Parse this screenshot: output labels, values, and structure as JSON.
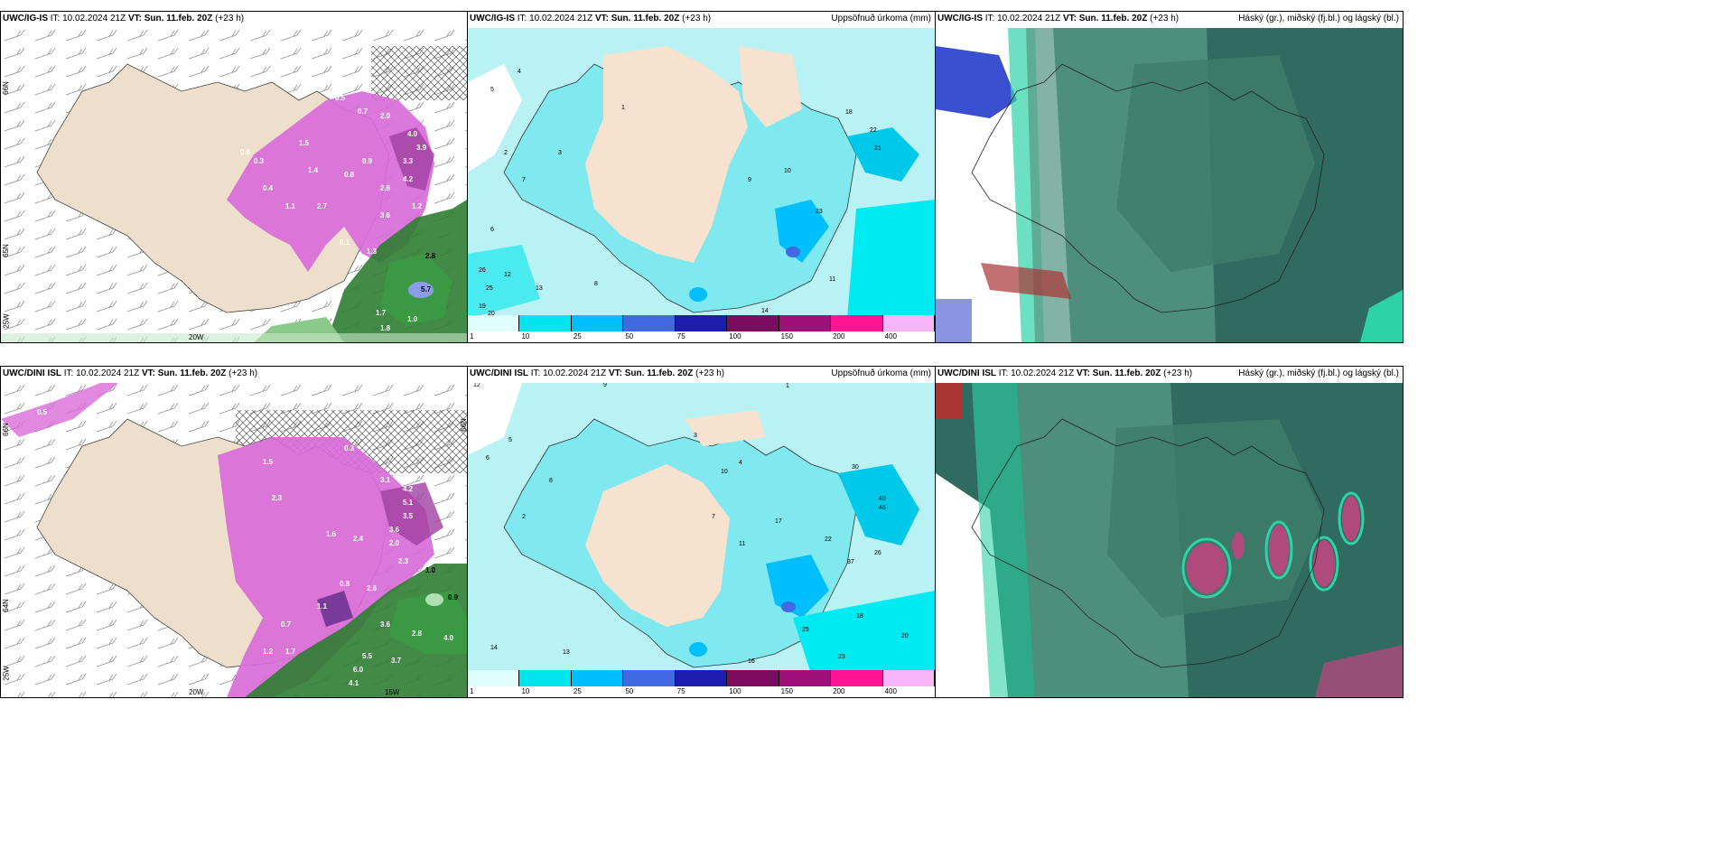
{
  "panels": [
    {
      "model": "UWC/IG-IS",
      "it": "IT: 10.02.2024 21Z",
      "vt_label": "VT:",
      "vt": "Sun. 11.feb. 20Z",
      "lead": "(+23 h)",
      "title": ""
    },
    {
      "model": "UWC/IG-IS",
      "it": "IT: 10.02.2024 21Z",
      "vt_label": "VT:",
      "vt": "Sun. 11.feb. 20Z",
      "lead": "(+23 h)",
      "title": "Uppsöfnuð úrkoma (mm)"
    },
    {
      "model": "UWC/IG-IS",
      "it": "IT: 10.02.2024 21Z",
      "vt_label": "VT:",
      "vt": "Sun. 11.feb. 20Z",
      "lead": "(+23 h)",
      "title": "Háský (gr.), miðský (fj.bl.) og lágský (bl.)"
    },
    {
      "model": "UWC/DINI ISL",
      "it": "IT: 10.02.2024 21Z",
      "vt_label": "VT:",
      "vt": "Sun. 11.feb. 20Z",
      "lead": "(+23 h)",
      "title": ""
    },
    {
      "model": "UWC/DINI ISL",
      "it": "IT: 10.02.2024 21Z",
      "vt_label": "VT:",
      "vt": "Sun. 11.feb. 20Z",
      "lead": "(+23 h)",
      "title": "Uppsöfnuð úrkoma (mm)"
    },
    {
      "model": "UWC/DINI ISL",
      "it": "IT: 10.02.2024 21Z",
      "vt_label": "VT:",
      "vt": "Sun. 11.feb. 20Z",
      "lead": "(+23 h)",
      "title": "Háský (gr.), miðský (fj.bl.) og lágský (bl.)"
    }
  ],
  "colorbar": {
    "labels": [
      "1",
      "10",
      "25",
      "50",
      "75",
      "100",
      "150",
      "200",
      "400"
    ],
    "colors": [
      "#e0ffff",
      "#00e5ee",
      "#00bfff",
      "#4169e1",
      "#1c1cb0",
      "#7a0b5e",
      "#a0107a",
      "#ff1493",
      "#f7b5f7"
    ]
  },
  "axes": {
    "lat_labels_top": [
      "66N",
      "65N",
      "25W"
    ],
    "lat_labels_bottom": [
      "66N",
      "64N",
      "25W"
    ],
    "lon_labels_top": [
      "20W"
    ],
    "lon_labels_bottom": [
      "20W",
      "15W"
    ],
    "lat_label_right": "66N"
  },
  "map_values": {
    "top_left": [
      "0.5",
      "0.7",
      "1.5",
      "2.0",
      "4.0",
      "3.9",
      "3.3",
      "4.2",
      "2.6",
      "3.6",
      "1.2",
      "1.5",
      "2.7",
      "2.8",
      "5.7",
      "1.0",
      "1.7",
      "1.8",
      "0.1",
      "1.1",
      "0.6",
      "0.3",
      "0.9",
      "0.8",
      "0.4",
      "1.4",
      "1.3"
    ],
    "top_mid": [
      "4",
      "5",
      "7",
      "2",
      "3",
      "1",
      "6",
      "8",
      "9",
      "10",
      "11",
      "12",
      "13",
      "14",
      "18",
      "19",
      "20",
      "21",
      "22",
      "23",
      "25",
      "26"
    ],
    "bottom_left": [
      "0.5",
      "0.3",
      "1.5",
      "2.3",
      "3.1",
      "4.2",
      "5.1",
      "3.5",
      "3.6",
      "2.0",
      "2.4",
      "2.6",
      "2.3",
      "1.6",
      "1.0",
      "0.9",
      "3.6",
      "2.8",
      "4.0",
      "5.5",
      "6.0",
      "4.1",
      "3.7",
      "1.2",
      "1.1",
      "1.7",
      "0.7",
      "0.8"
    ],
    "bottom_mid": [
      "12",
      "9",
      "1",
      "2",
      "3",
      "4",
      "5",
      "6",
      "7",
      "8",
      "10",
      "11",
      "13",
      "14",
      "16",
      "17",
      "18",
      "20",
      "22",
      "23",
      "25",
      "26",
      "30",
      "37",
      "40",
      "46"
    ]
  },
  "colors": {
    "land": "#eedfcc",
    "precip_light": "#e0ffff",
    "precip_cyan": "#00e5ee",
    "snow_magenta": "#e060e0",
    "rain_green": "#2e7d32",
    "cloud_dark": "#2f6b5e",
    "cloud_mid": "#5a9a88",
    "cloud_low_teal": "#2ed3a5"
  }
}
